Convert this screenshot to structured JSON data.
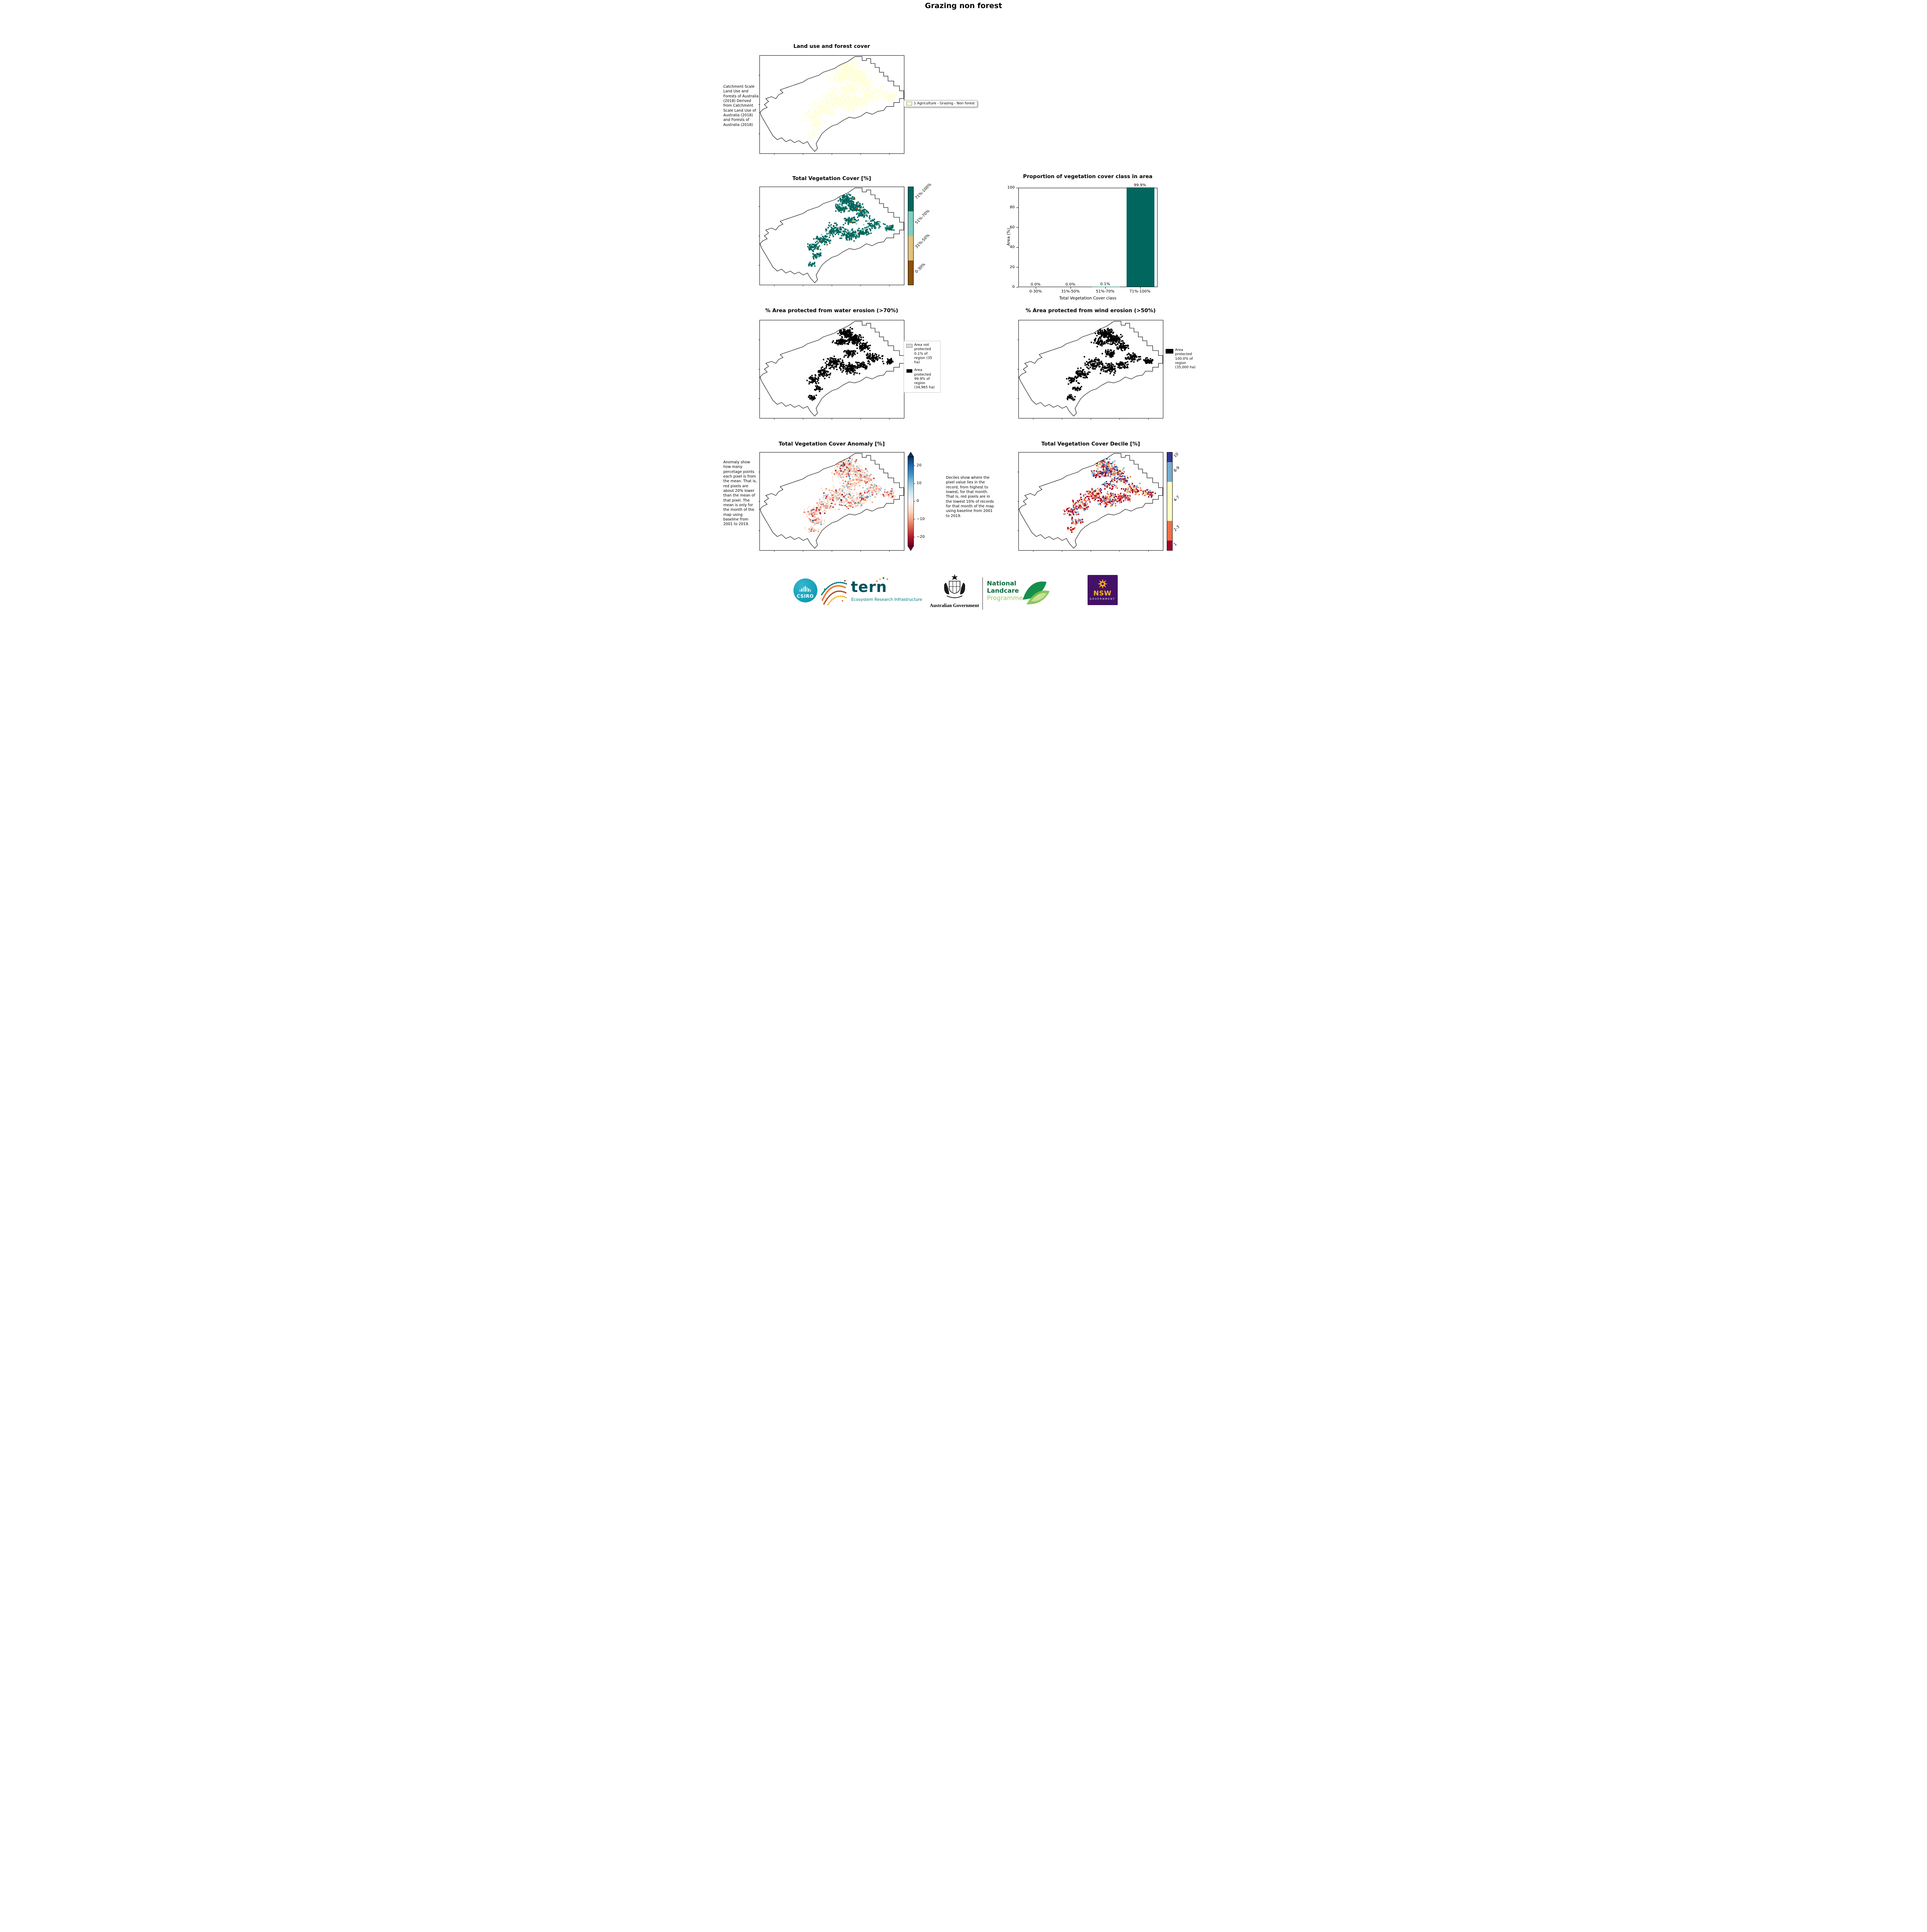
{
  "page": {
    "title": "Grazing non forest"
  },
  "panels": {
    "land_use": {
      "title": "Land use and forest cover",
      "side_note": " Catchment Scale Land Use and Forests of Australia (2018) Derived from Catchment Scale Land Use of Australia (2018) and Forests of Australia (2018)",
      "legend": [
        {
          "label": "1 Agriculture - Grazing - Non forest",
          "color": "#ffffd9"
        }
      ]
    },
    "tvc": {
      "title": "Total Vegetation Cover [%]",
      "colorbar": [
        {
          "label": "71%-100%",
          "color": "#01665e"
        },
        {
          "label": "51%-70%",
          "color": "#80cdc1"
        },
        {
          "label": "31%-50%",
          "color": "#dfc27d"
        },
        {
          "label": "0-30%",
          "color": "#8c510a"
        }
      ]
    },
    "water": {
      "title": "% Area protected from water erosion (>70%)",
      "legend": [
        {
          "label": "Area not protected 0.1% of region (35 ha)",
          "color": "#d9d9d9"
        },
        {
          "label": "Area protected 99.9% of region (34,965 ha)",
          "color": "#000000"
        }
      ]
    },
    "wind": {
      "title": "% Area protected from wind erosion (>50%)",
      "legend": [
        {
          "label": "Area protected 100.0% of region (35,000 ha)",
          "color": "#000000"
        }
      ]
    },
    "anomaly": {
      "title": "Total Vegetation Cover Anomaly [%]",
      "side_note": "Anomaly show how many percetage points each pixel is from the mean. That is, red pixels are about 20% lower than the mean of that pixel. The mean is only for the month of the map using baseline from 2001 to 2019.",
      "colorbar_ticks": [
        "20",
        "10",
        "0",
        "−10",
        "−20"
      ],
      "gradient": [
        "#053061",
        "#2166ac",
        "#4393c3",
        "#92c5de",
        "#d1e5f0",
        "#f7f7f7",
        "#fddbc7",
        "#f4a582",
        "#d6604d",
        "#b2182b",
        "#67001f"
      ]
    },
    "decile": {
      "title": "Total Vegetation Cover Decile [%]",
      "side_note": "Deciles show where the pixel value lies in the record, from highest to lowest, for that month. That is, red pixels are in the lowest 10% of records for that month of the map using baseline from 2001 to 2019.",
      "colorbar": [
        {
          "label": "10",
          "color": "#313695"
        },
        {
          "label": "8-9",
          "color": "#74add1"
        },
        {
          "label": "4-7",
          "color": "#ffffbf"
        },
        {
          "label": "2-3",
          "color": "#f46d43"
        },
        {
          "label": "1",
          "color": "#a50026"
        }
      ]
    }
  },
  "chart_data": {
    "type": "bar",
    "title": "Proportion of vegetation cover class in area",
    "categories": [
      "0-30%",
      "31%-50%",
      "51%-70%",
      "71%-100%"
    ],
    "values": [
      0.0,
      0.0,
      0.1,
      99.9
    ],
    "bar_labels": [
      "0.0%",
      "0.0%",
      "0.1%",
      "99.9%"
    ],
    "xlabel": "Total Vegetation Cover class",
    "ylabel": "Area (%)",
    "ylim": [
      0,
      100
    ],
    "yticks": [
      0,
      20,
      40,
      60,
      80,
      100
    ],
    "bar_color": "#01665e",
    "grid": false,
    "legend_position": "none"
  },
  "footer": {
    "csiro_label": "CSIRO",
    "tern_label": "tern",
    "tern_sub": "Ecosystem Research Infrastructure",
    "aus_gov_label": "Australian Government",
    "landcare_lines": [
      "National",
      "Landcare",
      "Programme"
    ],
    "nsw_label": "NSW",
    "nsw_sub": "GOVERNMENT",
    "colors": {
      "csiro": "#00a9ce",
      "tern": "#00525e",
      "tern_sub": "#007377",
      "landcare_dark": "#0a6b3d",
      "landcare_light": "#9dc65b",
      "nsw_bg": "#431266",
      "nsw_accent": "#ffb81c"
    }
  }
}
